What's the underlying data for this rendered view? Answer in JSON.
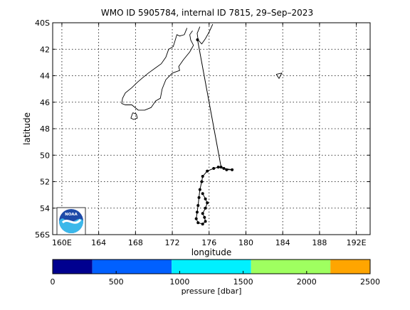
{
  "title": "WMO ID 5905784, internal ID 7815, 29–Sep–2023",
  "map": {
    "xlabel": "longitude",
    "ylabel": "latitude",
    "xlim": [
      159,
      193.5
    ],
    "ylim": [
      -56,
      -40
    ],
    "x_ticks": [
      {
        "value": 160,
        "label": "160E"
      },
      {
        "value": 164,
        "label": "164"
      },
      {
        "value": 168,
        "label": "168"
      },
      {
        "value": 172,
        "label": "172"
      },
      {
        "value": 176,
        "label": "176"
      },
      {
        "value": 180,
        "label": "180"
      },
      {
        "value": 184,
        "label": "184"
      },
      {
        "value": 188,
        "label": "188"
      },
      {
        "value": 192,
        "label": "192E"
      }
    ],
    "y_ticks": [
      {
        "value": -40,
        "label": "40S"
      },
      {
        "value": -42,
        "label": "42"
      },
      {
        "value": -44,
        "label": "44"
      },
      {
        "value": -46,
        "label": "46"
      },
      {
        "value": -48,
        "label": "48"
      },
      {
        "value": -50,
        "label": "50"
      },
      {
        "value": -52,
        "label": "52"
      },
      {
        "value": -54,
        "label": "54"
      },
      {
        "value": -56,
        "label": "56S"
      }
    ],
    "grid": true,
    "coastline_color": "#000000",
    "track_color": "#000000",
    "coastlines": [
      [
        [
          173.6,
          -40.4
        ],
        [
          173.3,
          -40.9
        ],
        [
          172.8,
          -41.0
        ],
        [
          172.5,
          -40.9
        ],
        [
          172.1,
          -41.8
        ],
        [
          171.6,
          -42.0
        ],
        [
          171.3,
          -42.6
        ],
        [
          170.8,
          -43.1
        ],
        [
          170.2,
          -43.4
        ],
        [
          169.4,
          -43.8
        ],
        [
          168.7,
          -44.2
        ],
        [
          168.2,
          -44.5
        ],
        [
          167.6,
          -44.9
        ],
        [
          166.9,
          -45.3
        ],
        [
          166.6,
          -45.7
        ],
        [
          166.5,
          -46.1
        ],
        [
          166.9,
          -46.2
        ],
        [
          167.6,
          -46.2
        ],
        [
          168.3,
          -46.6
        ],
        [
          169.0,
          -46.6
        ],
        [
          169.7,
          -46.4
        ],
        [
          170.2,
          -45.9
        ],
        [
          170.7,
          -45.7
        ],
        [
          170.9,
          -45.0
        ],
        [
          171.3,
          -44.3
        ],
        [
          172.0,
          -43.8
        ],
        [
          172.8,
          -43.6
        ],
        [
          172.7,
          -43.3
        ],
        [
          173.2,
          -42.8
        ],
        [
          173.9,
          -42.2
        ],
        [
          174.3,
          -41.7
        ],
        [
          174.0,
          -41.3
        ],
        [
          173.9,
          -40.9
        ],
        [
          174.2,
          -40.6
        ]
      ],
      [
        [
          174.8,
          -41.3
        ],
        [
          175.2,
          -41.6
        ],
        [
          175.6,
          -41.2
        ],
        [
          176.0,
          -40.7
        ],
        [
          176.4,
          -40.1
        ]
      ],
      [
        [
          174.8,
          -41.3
        ],
        [
          174.7,
          -40.8
        ],
        [
          175.0,
          -40.3
        ]
      ],
      [
        [
          167.7,
          -46.8
        ],
        [
          168.1,
          -46.9
        ],
        [
          168.2,
          -47.2
        ],
        [
          167.8,
          -47.3
        ],
        [
          167.5,
          -47.2
        ],
        [
          167.7,
          -46.8
        ]
      ],
      [
        [
          183.3,
          -43.9
        ],
        [
          183.9,
          -43.8
        ],
        [
          183.6,
          -44.2
        ],
        [
          183.3,
          -43.9
        ]
      ]
    ],
    "track": [
      [
        174.74,
        -41.28
      ],
      [
        177.3,
        -50.9
      ],
      [
        177.9,
        -51.1
      ],
      [
        178.5,
        -51.1
      ],
      [
        177.6,
        -51.0
      ],
      [
        177.0,
        -50.9
      ],
      [
        176.5,
        -51.0
      ],
      [
        175.8,
        -51.2
      ],
      [
        175.3,
        -51.6
      ],
      [
        175.2,
        -52.0
      ],
      [
        175.0,
        -52.6
      ],
      [
        174.9,
        -53.2
      ],
      [
        174.8,
        -53.8
      ],
      [
        174.7,
        -54.3
      ],
      [
        174.6,
        -54.8
      ],
      [
        174.8,
        -55.1
      ],
      [
        175.3,
        -55.2
      ],
      [
        175.6,
        -55.0
      ],
      [
        175.5,
        -54.7
      ],
      [
        175.3,
        -54.4
      ],
      [
        175.6,
        -54.0
      ],
      [
        175.8,
        -53.6
      ],
      [
        175.6,
        -53.3
      ],
      [
        175.3,
        -52.9
      ]
    ]
  },
  "colorbar": {
    "label": "pressure [dbar]",
    "ticks": [
      "0",
      "500",
      "1000",
      "1500",
      "2000",
      "2500"
    ],
    "range": [
      0,
      2500
    ],
    "segments": [
      {
        "from": 0,
        "to": 312,
        "color": "#00008f"
      },
      {
        "from": 312,
        "to": 937,
        "color": "#0060ff"
      },
      {
        "from": 937,
        "to": 1562,
        "color": "#00f0ff"
      },
      {
        "from": 1562,
        "to": 2187,
        "color": "#9fff60"
      },
      {
        "from": 2187,
        "to": 2500,
        "color": "#ffa500"
      }
    ]
  },
  "logo": {
    "text": "NOAA",
    "icon": "noaa-logo"
  }
}
